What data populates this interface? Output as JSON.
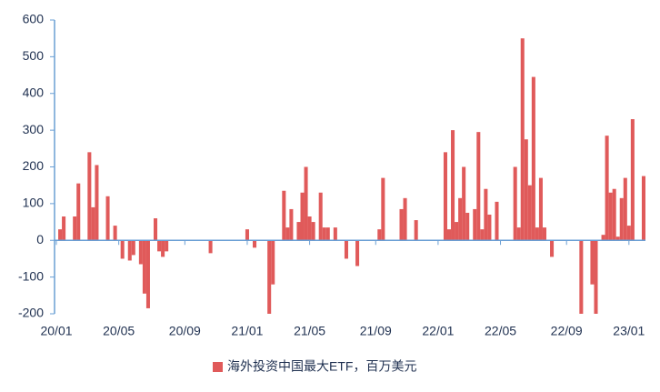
{
  "chart_data": {
    "type": "bar",
    "categories": [
      "20/01",
      null,
      null,
      null,
      null,
      null,
      null,
      null,
      null,
      null,
      null,
      null,
      null,
      null,
      null,
      null,
      null,
      "20/05",
      null,
      null,
      null,
      null,
      null,
      null,
      null,
      null,
      null,
      null,
      null,
      null,
      null,
      null,
      null,
      null,
      null,
      "20/09",
      null,
      null,
      null,
      null,
      null,
      null,
      null,
      null,
      null,
      null,
      null,
      null,
      null,
      null,
      null,
      null,
      "21/01",
      null,
      null,
      null,
      null,
      null,
      null,
      null,
      null,
      null,
      null,
      null,
      null,
      null,
      null,
      null,
      null,
      "21/05",
      null,
      null,
      null,
      null,
      null,
      null,
      null,
      null,
      null,
      null,
      null,
      null,
      null,
      null,
      null,
      null,
      null,
      "21/09",
      null,
      null,
      null,
      null,
      null,
      null,
      null,
      null,
      null,
      null,
      null,
      null,
      null,
      null,
      null,
      null,
      "22/01",
      null,
      null,
      null,
      null,
      null,
      null,
      null,
      null,
      null,
      null,
      null,
      null,
      null,
      null,
      null,
      null,
      "22/05",
      null,
      null,
      null,
      null,
      null,
      null,
      null,
      null,
      null,
      null,
      null,
      null,
      null,
      null,
      null,
      null,
      null,
      "22/09",
      null,
      null,
      null,
      null,
      null,
      null,
      null,
      null,
      null,
      null,
      null,
      null,
      null,
      null,
      null,
      null,
      "23/01",
      null,
      null,
      null,
      null
    ],
    "series": [
      {
        "name": "海外投资中国最大ETF，百万美元",
        "color": "#e05a5a",
        "values": [
          0,
          30,
          65,
          0,
          0,
          65,
          155,
          0,
          0,
          240,
          90,
          205,
          0,
          0,
          120,
          0,
          40,
          0,
          -50,
          0,
          -55,
          -40,
          0,
          -65,
          -145,
          -185,
          0,
          60,
          -30,
          -45,
          -30,
          0,
          0,
          0,
          0,
          0,
          0,
          0,
          0,
          0,
          0,
          0,
          -35,
          0,
          0,
          0,
          0,
          0,
          0,
          0,
          0,
          0,
          30,
          0,
          -20,
          0,
          0,
          0,
          -200,
          -120,
          0,
          0,
          135,
          35,
          85,
          0,
          50,
          130,
          200,
          65,
          50,
          0,
          130,
          35,
          35,
          0,
          35,
          0,
          0,
          -50,
          0,
          0,
          -70,
          0,
          0,
          0,
          0,
          0,
          30,
          170,
          0,
          0,
          0,
          0,
          85,
          115,
          0,
          0,
          55,
          0,
          0,
          0,
          0,
          0,
          0,
          0,
          240,
          30,
          300,
          50,
          115,
          200,
          75,
          0,
          85,
          295,
          30,
          140,
          70,
          0,
          105,
          0,
          0,
          0,
          0,
          200,
          35,
          550,
          275,
          150,
          445,
          35,
          170,
          35,
          0,
          -45,
          0,
          0,
          0,
          0,
          0,
          0,
          0,
          -200,
          0,
          0,
          -120,
          -200,
          0,
          15,
          285,
          130,
          140,
          10,
          115,
          170,
          40,
          330,
          0,
          0,
          175
        ]
      }
    ],
    "ylim": [
      -200,
      600
    ],
    "yticks": [
      -200,
      -100,
      0,
      100,
      200,
      300,
      400,
      500,
      600
    ],
    "grid": false,
    "legend": "bottom"
  }
}
